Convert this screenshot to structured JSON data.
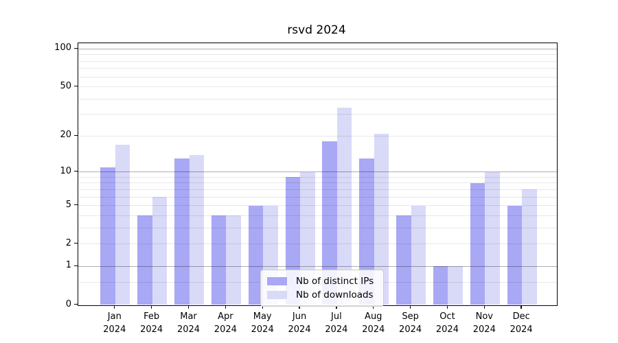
{
  "title": "rsvd 2024",
  "colors": {
    "ips_bar": "#a8a8f5",
    "downloads_bar": "#d9d9f8",
    "grid_major": "rgba(0,0,0,0.32)",
    "grid_minor": "rgba(0,0,0,0.09)",
    "spine": "#000000",
    "legend_border": "#cccccc"
  },
  "legend": {
    "items": [
      {
        "key": "ips",
        "label": "Nb of distinct IPs"
      },
      {
        "key": "downloads",
        "label": "Nb of downloads"
      }
    ],
    "position": "lower center"
  },
  "chart_data": {
    "type": "bar",
    "title": "rsvd 2024",
    "x_categories": [
      "Jan",
      "Feb",
      "Mar",
      "Apr",
      "May",
      "Jun",
      "Jul",
      "Aug",
      "Sep",
      "Oct",
      "Nov",
      "Dec"
    ],
    "x_year": "2024",
    "series": [
      {
        "name": "Nb of distinct IPs",
        "key": "ips",
        "values": [
          11,
          4,
          13,
          4,
          5,
          9,
          18,
          13,
          4,
          1,
          8,
          5
        ]
      },
      {
        "name": "Nb of downloads",
        "key": "downloads",
        "values": [
          17,
          6,
          14,
          4,
          5,
          10,
          34,
          21,
          5,
          1,
          10,
          7
        ]
      }
    ],
    "y_ticks": [
      100,
      50,
      20,
      10,
      5,
      2,
      1,
      0
    ],
    "y_scale": "log10(value+1)",
    "ylim": [
      0,
      111
    ],
    "y_gridlines_major": [
      1,
      10,
      100
    ],
    "y_gridlines_minor": [
      0.5,
      2,
      3,
      4,
      5,
      6,
      7,
      8,
      9,
      20,
      30,
      40,
      50,
      60,
      70,
      80,
      90
    ],
    "grid": "on",
    "legend_position": "lower center"
  }
}
